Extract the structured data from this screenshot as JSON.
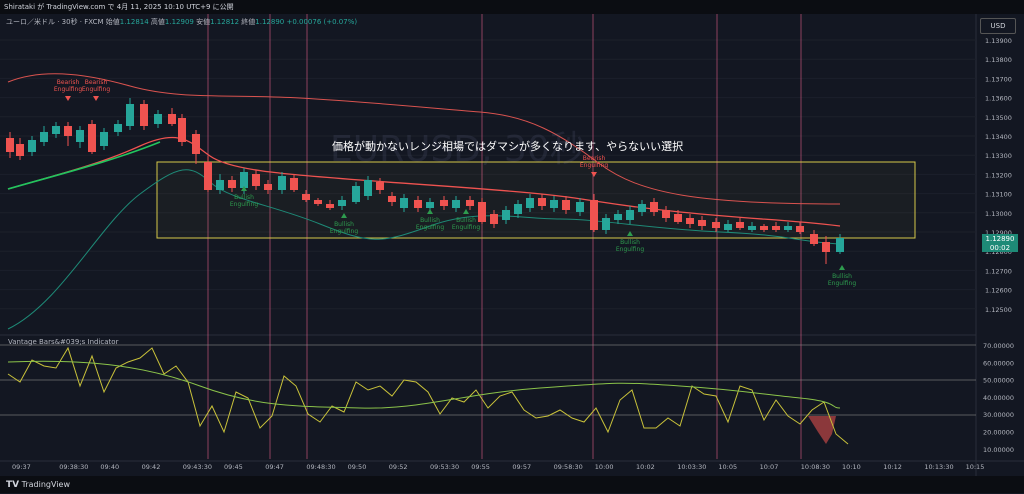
{
  "header": {
    "publish_line": "Shirataki が TradingView.com で 4月 11, 2025 10:10 UTC+9 に公開"
  },
  "symbol": {
    "name": "ユーロ／米ドル · 30秒 · FXCM",
    "open_label": "始値",
    "open": "1.12814",
    "high_label": "高値",
    "high": "1.12909",
    "low_label": "安値",
    "low": "1.12812",
    "close_label": "終値",
    "close": "1.12890",
    "change": "+0.00076 (+0.07%)"
  },
  "currency_button": "USD",
  "last_price": {
    "value": "1.12890",
    "countdown": "00:02"
  },
  "watermark": "EURUSD, 30秒",
  "annotation": "価格が動かないレンジ相場ではダマシが多くなります、やらないい選択",
  "indicator_title": "Vantage Bars&#039;s Indicator",
  "price_axis": [
    "1.13900",
    "1.13800",
    "1.13700",
    "1.13600",
    "1.13500",
    "1.13400",
    "1.13300",
    "1.13200",
    "1.13100",
    "1.13000",
    "1.12900",
    "1.12800",
    "1.12700",
    "1.12600",
    "1.12500"
  ],
  "indicator_axis": [
    "70.00000",
    "60.00000",
    "50.00000",
    "40.00000",
    "30.00000",
    "20.00000",
    "10.00000"
  ],
  "time_axis": [
    "09:37",
    "09:38:30",
    "09:40",
    "09:42",
    "09:43:30",
    "09:45",
    "09:47",
    "09:48:30",
    "09:50",
    "09:52",
    "09:53:30",
    "09:55",
    "09:57",
    "09:58:30",
    "10:00",
    "10:02",
    "10:03:30",
    "10:05",
    "10:07",
    "10:08:30",
    "10:10",
    "10:12",
    "10:13:30",
    "10:15"
  ],
  "signals": [
    {
      "text": "Bearish Engulfing",
      "type": "bearish"
    },
    {
      "text": "Bearish Engulfing",
      "type": "bearish"
    },
    {
      "text": "Bullish Engulfing",
      "type": "bullish"
    },
    {
      "text": "Bullish Engulfing",
      "type": "bullish"
    },
    {
      "text": "Bullish Engulfing",
      "type": "bullish"
    },
    {
      "text": "Bullish Engulfing",
      "type": "bullish"
    },
    {
      "text": "Bearish Engulfing",
      "type": "bearish"
    },
    {
      "text": "Bullish Engulfing",
      "type": "bullish"
    },
    {
      "text": "Bullish Engulfing",
      "type": "bullish"
    }
  ],
  "footer": {
    "brand": "TradingView"
  },
  "colors": {
    "background": "#131722",
    "bull": "#26a69a",
    "bear": "#ef5350",
    "range_box": "#d6c84a",
    "session_line": "#f06292",
    "indicator_line": "#c9c23a",
    "indicator_signal": "#8bc34a"
  }
}
